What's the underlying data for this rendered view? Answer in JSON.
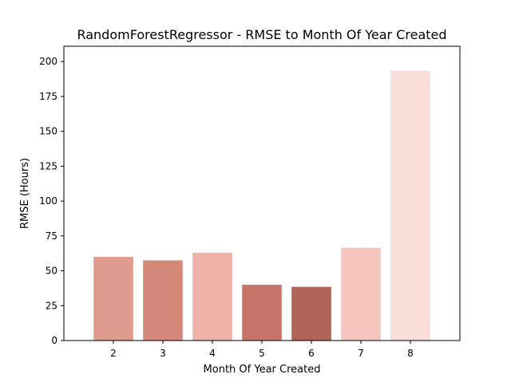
{
  "chart_data": {
    "type": "bar",
    "title": "RandomForestRegressor - RMSE to Month Of Year Created",
    "xlabel": "Month Of Year Created",
    "ylabel": "RMSE (Hours)",
    "categories": [
      "2",
      "3",
      "4",
      "5",
      "6",
      "7",
      "8"
    ],
    "values": [
      60,
      57.5,
      63,
      40,
      38.5,
      66.5,
      193.5
    ],
    "colors": [
      "#e09b8f",
      "#d4897b",
      "#eeb1a8",
      "#c67568",
      "#b06357",
      "#f5c6be",
      "#fadeda"
    ],
    "ylim": [
      0,
      211
    ],
    "yticks": [
      0,
      25,
      50,
      75,
      100,
      125,
      150,
      175,
      200
    ],
    "ytick_labels": [
      "0",
      "25",
      "50",
      "75",
      "100",
      "125",
      "150",
      "175",
      "200"
    ],
    "grid": false,
    "legend": null
  }
}
